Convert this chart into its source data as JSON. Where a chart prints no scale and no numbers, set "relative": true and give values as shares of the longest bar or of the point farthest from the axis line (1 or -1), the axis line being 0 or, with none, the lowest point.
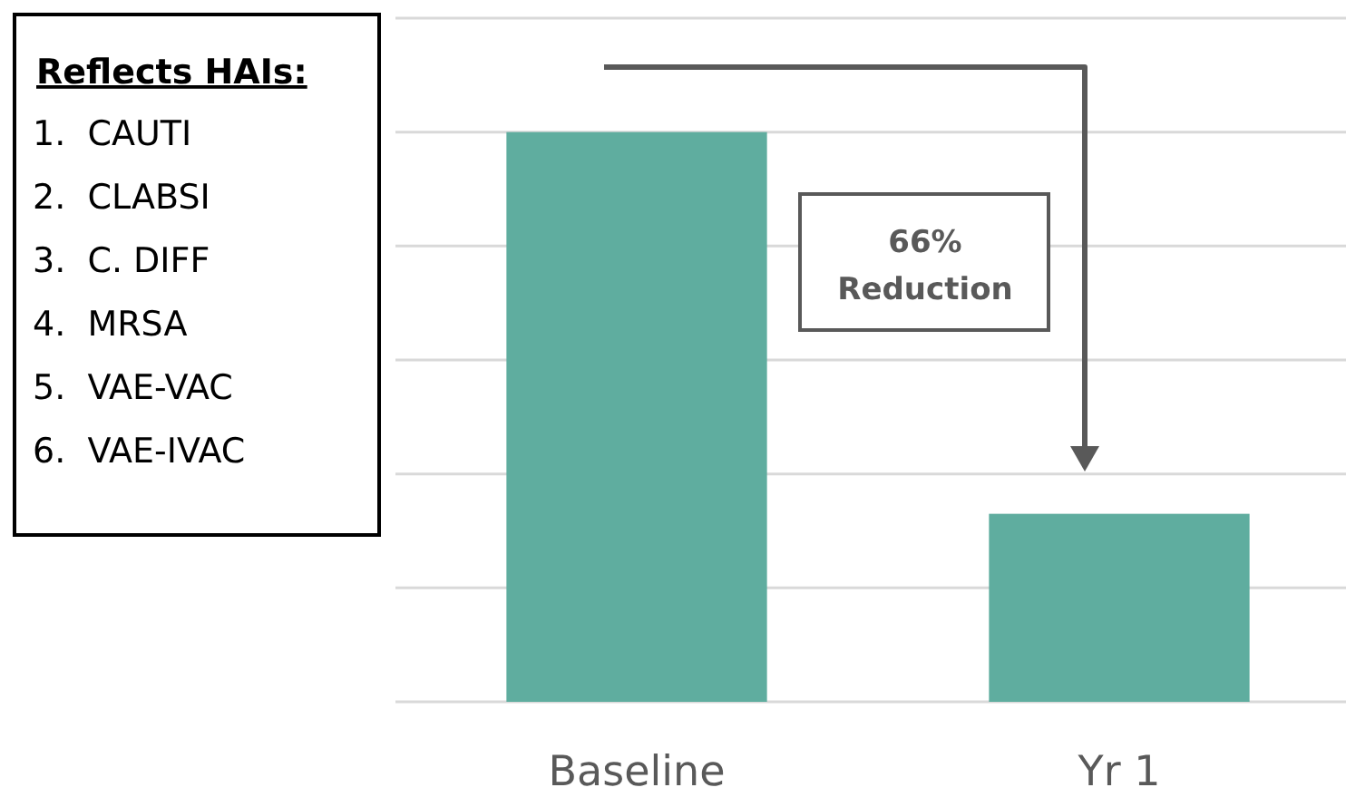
{
  "chart_data": {
    "type": "bar",
    "relative": true,
    "categories": [
      "Baseline",
      "Yr 1"
    ],
    "values": [
      1,
      0.33
    ],
    "color": "#5fad9f",
    "grid": true,
    "annotations": [
      "Reflects HAIs:",
      "1.  CAUTI",
      "2.  CLABSI",
      "3.  C. DIFF",
      "4.  MRSA",
      "5.  VAE-VAC",
      "6.  VAE-IVAC",
      "66% Reduction"
    ]
  }
}
